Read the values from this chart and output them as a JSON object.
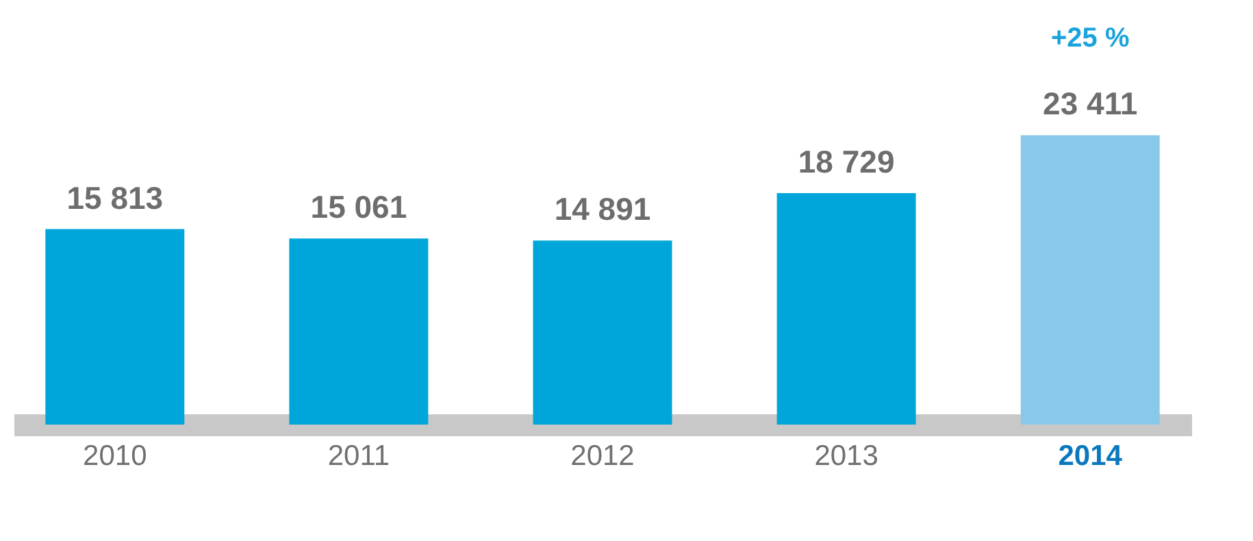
{
  "chart_data": {
    "type": "bar",
    "categories": [
      "2010",
      "2011",
      "2012",
      "2013",
      "2014"
    ],
    "values": [
      15813,
      15061,
      14891,
      18729,
      23411
    ],
    "colors": [
      "#00a6d9",
      "#00a6d9",
      "#00a6d9",
      "#00a6d9",
      "#88c9ea"
    ],
    "value_labels": [
      "15 813",
      "15 061",
      "14 891",
      "18 729",
      "23 411"
    ],
    "annotations": [
      "+25 %"
    ]
  }
}
